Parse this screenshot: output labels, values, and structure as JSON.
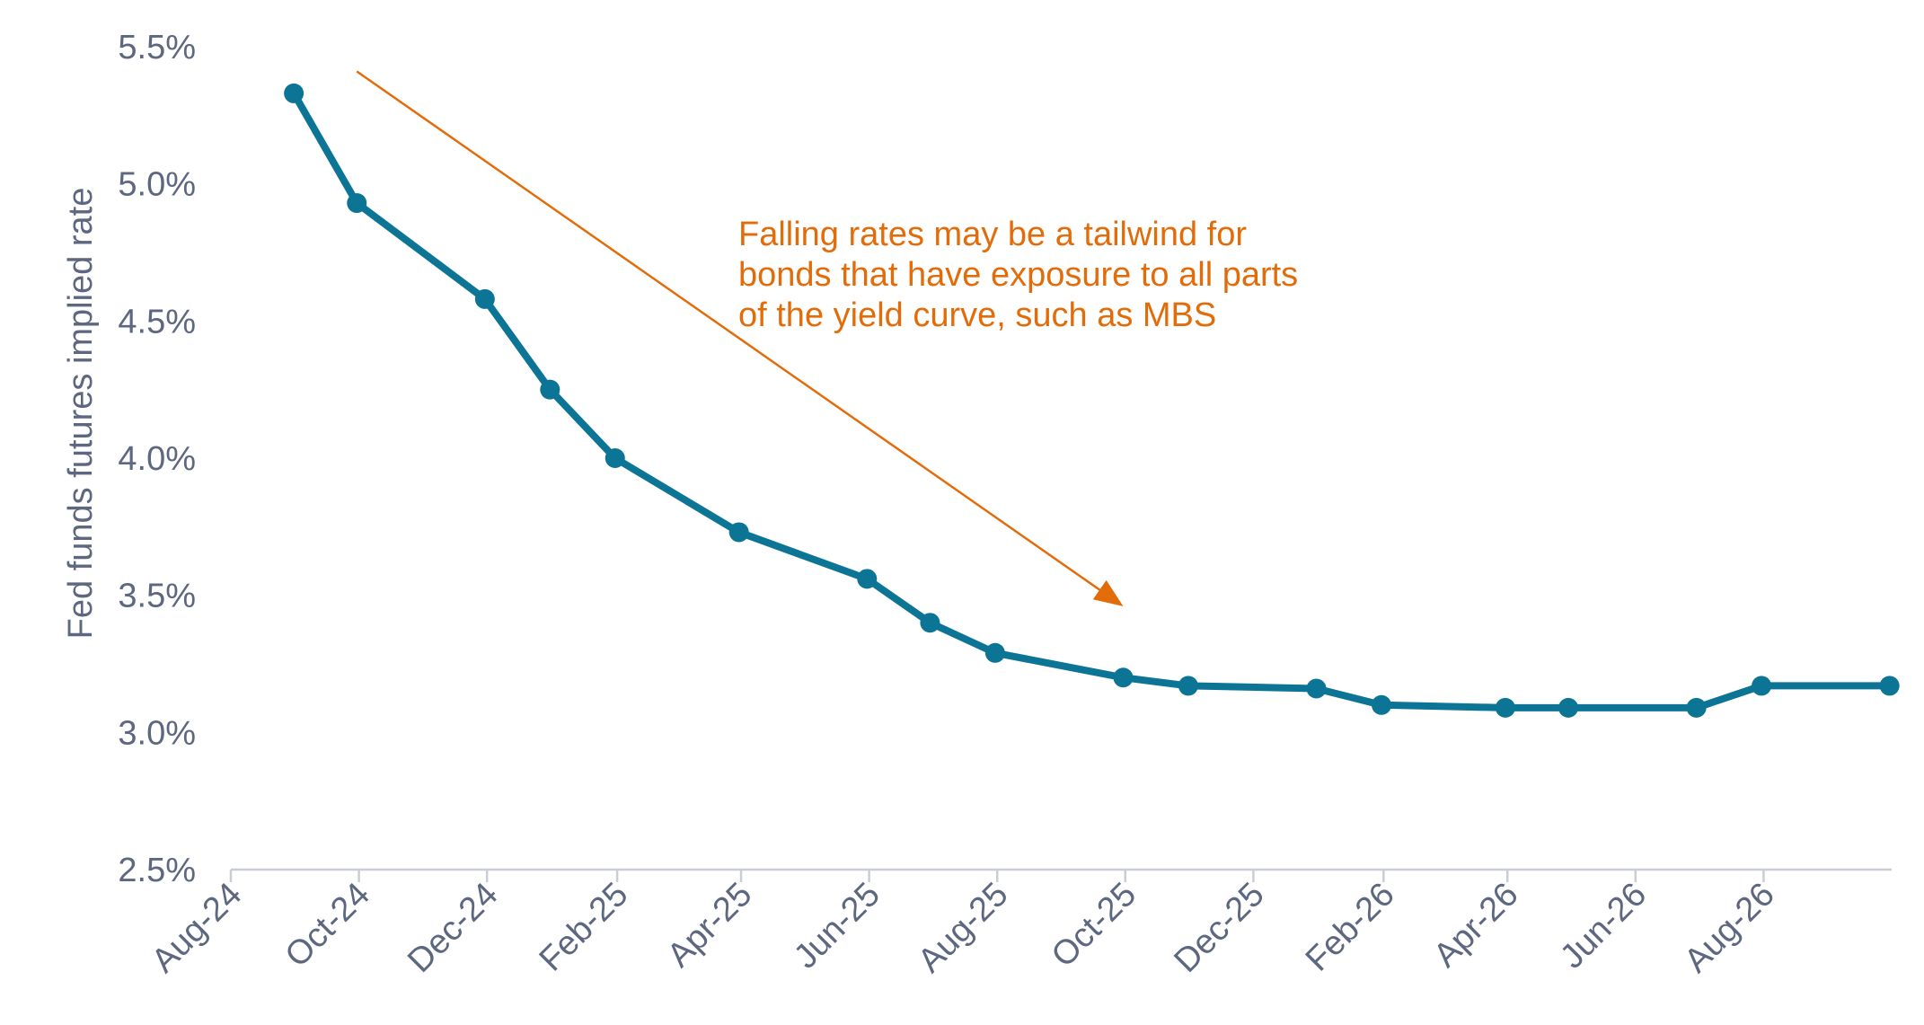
{
  "chart_data": {
    "type": "line",
    "title": "",
    "ylabel": "Fed funds futures implied rate",
    "xlabel": "",
    "ylim": [
      2.5,
      5.5
    ],
    "y_ticks": [
      2.5,
      3.0,
      3.5,
      4.0,
      4.5,
      5.0,
      5.5
    ],
    "y_tick_labels": [
      "2.5%",
      "3.0%",
      "3.5%",
      "4.0%",
      "4.5%",
      "5.0%",
      "5.5%"
    ],
    "x_tick_labels": [
      "Aug-24",
      "Oct-24",
      "Dec-24",
      "Feb-25",
      "Apr-25",
      "Jun-25",
      "Aug-25",
      "Oct-25",
      "Dec-25",
      "Feb-26",
      "Apr-26",
      "Jun-26",
      "Aug-26"
    ],
    "x_domain": [
      "2024-08-01",
      "2026-10-01"
    ],
    "grid": false,
    "legend": "none",
    "series": [
      {
        "color": "#0c7596",
        "points": [
          {
            "x": "2024-08-31",
            "y": 5.33
          },
          {
            "x": "2024-09-30",
            "y": 4.93
          },
          {
            "x": "2024-11-30",
            "y": 4.58
          },
          {
            "x": "2024-12-31",
            "y": 4.25
          },
          {
            "x": "2025-01-31",
            "y": 4.0
          },
          {
            "x": "2025-03-31",
            "y": 3.73
          },
          {
            "x": "2025-05-31",
            "y": 3.56
          },
          {
            "x": "2025-06-30",
            "y": 3.4
          },
          {
            "x": "2025-07-31",
            "y": 3.29
          },
          {
            "x": "2025-09-30",
            "y": 3.2
          },
          {
            "x": "2025-10-31",
            "y": 3.17
          },
          {
            "x": "2025-12-31",
            "y": 3.16
          },
          {
            "x": "2026-01-31",
            "y": 3.1
          },
          {
            "x": "2026-03-31",
            "y": 3.09
          },
          {
            "x": "2026-04-30",
            "y": 3.09
          },
          {
            "x": "2026-06-30",
            "y": 3.09
          },
          {
            "x": "2026-07-31",
            "y": 3.17
          },
          {
            "x": "2026-09-30",
            "y": 3.17
          }
        ]
      }
    ],
    "annotations": [
      {
        "lines": [
          "Falling rates may be a tailwind for",
          "bonds that have exposure to all parts",
          "of the yield curve, such as MBS"
        ],
        "color": "#e36c0a",
        "arrow": {
          "from": {
            "x": "2024-09-30",
            "y": 5.41
          },
          "to": {
            "x": "2025-09-30",
            "y": 3.46
          }
        }
      }
    ]
  }
}
